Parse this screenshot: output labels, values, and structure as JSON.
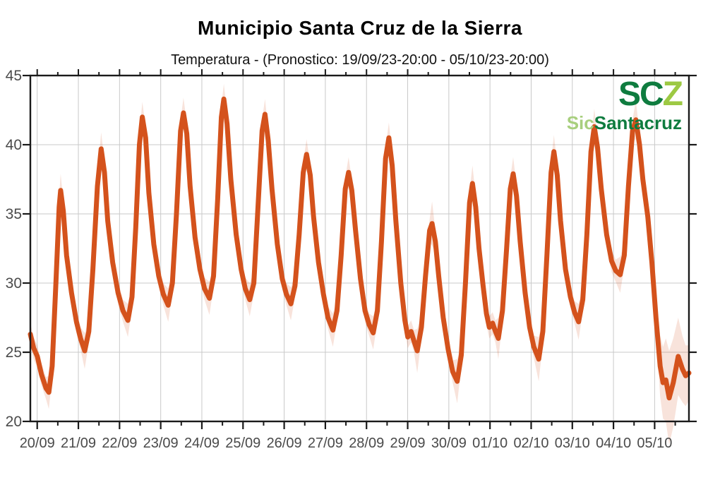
{
  "title": "Municipio Santa Cruz de la Sierra",
  "subtitle": "Temperatura - (Pronostico: 19/09/23-20:00 - 05/10/23-20:00)",
  "logo": {
    "scz_dark": "SC",
    "scz_light": "Z",
    "sub_light": "Sic",
    "sub_dark": "Santacruz"
  },
  "colors": {
    "line": "#d4521c",
    "band": "rgba(212,82,28,0.16)",
    "grid": "#c9c9c9",
    "axis": "#1a1a1a",
    "tick_label": "#4a4a4a",
    "logo_dark_green": "#0f7c3f",
    "logo_light_green": "#9dc943",
    "logo_pale_green": "#a8cf7e"
  },
  "chart_data": {
    "type": "line",
    "title": "Municipio Santa Cruz de la Sierra",
    "subtitle": "Temperatura - (Pronostico: 19/09/23-20:00 - 05/10/23-20:00)",
    "xlabel": "",
    "ylabel": "",
    "x_start": "19/09/23-20:00",
    "x_end": "05/10/23-20:00",
    "x_range_days": 16,
    "x_first_tick_offset_days": 0.1667,
    "xticklabels": [
      "20/09",
      "21/09",
      "22/09",
      "23/09",
      "24/09",
      "25/09",
      "26/09",
      "27/09",
      "28/09",
      "29/09",
      "30/09",
      "01/10",
      "02/10",
      "03/10",
      "04/10",
      "05/10"
    ],
    "ylim": [
      20,
      45
    ],
    "yticks": [
      20,
      25,
      30,
      35,
      40,
      45
    ],
    "grid": true,
    "legend": "none",
    "band_default_halfwidth": 0.8,
    "series": [
      {
        "name": "Temperatura pronosticada (C)",
        "points": [
          [
            0.0,
            26.3
          ],
          [
            0.08,
            25.3
          ],
          [
            0.17,
            24.7
          ],
          [
            0.27,
            23.4
          ],
          [
            0.38,
            22.4
          ],
          [
            0.45,
            22.1,
            1.2
          ],
          [
            0.53,
            24.0
          ],
          [
            0.62,
            30.0
          ],
          [
            0.7,
            35.5
          ],
          [
            0.735,
            36.7,
            1.2
          ],
          [
            0.8,
            35.2
          ],
          [
            0.88,
            32.0
          ],
          [
            1.0,
            29.3
          ],
          [
            1.12,
            27.2
          ],
          [
            1.22,
            26.0
          ],
          [
            1.32,
            25.1,
            1.3
          ],
          [
            1.42,
            26.5
          ],
          [
            1.52,
            31.0
          ],
          [
            1.63,
            37.0
          ],
          [
            1.72,
            39.7,
            1.2
          ],
          [
            1.8,
            38.0
          ],
          [
            1.88,
            34.5
          ],
          [
            2.0,
            31.5
          ],
          [
            2.13,
            29.3
          ],
          [
            2.25,
            28.0
          ],
          [
            2.37,
            27.3,
            1.2
          ],
          [
            2.47,
            29.0
          ],
          [
            2.56,
            34.0
          ],
          [
            2.65,
            40.0
          ],
          [
            2.72,
            42.0,
            1.1
          ],
          [
            2.8,
            40.5
          ],
          [
            2.88,
            36.5
          ],
          [
            3.0,
            32.8
          ],
          [
            3.12,
            30.5
          ],
          [
            3.23,
            29.2
          ],
          [
            3.35,
            28.4,
            1.2
          ],
          [
            3.45,
            30.0
          ],
          [
            3.55,
            35.0
          ],
          [
            3.65,
            41.0
          ],
          [
            3.72,
            42.3,
            1.1
          ],
          [
            3.8,
            40.8
          ],
          [
            3.88,
            37.0
          ],
          [
            4.0,
            33.3
          ],
          [
            4.12,
            31.0
          ],
          [
            4.23,
            29.6
          ],
          [
            4.35,
            28.9,
            1.2
          ],
          [
            4.45,
            30.5
          ],
          [
            4.55,
            36.0
          ],
          [
            4.64,
            42.0
          ],
          [
            4.7,
            43.3,
            1.1
          ],
          [
            4.78,
            41.5
          ],
          [
            4.87,
            37.5
          ],
          [
            5.0,
            33.5
          ],
          [
            5.12,
            31.0
          ],
          [
            5.22,
            29.6
          ],
          [
            5.33,
            28.8,
            1.2
          ],
          [
            5.43,
            30.0
          ],
          [
            5.53,
            35.5
          ],
          [
            5.63,
            41.0
          ],
          [
            5.7,
            42.2,
            1.1
          ],
          [
            5.78,
            40.3
          ],
          [
            5.87,
            36.8
          ],
          [
            6.0,
            32.8
          ],
          [
            6.12,
            30.3
          ],
          [
            6.22,
            29.2
          ],
          [
            6.33,
            28.5,
            1.2
          ],
          [
            6.43,
            29.8
          ],
          [
            6.53,
            33.5
          ],
          [
            6.63,
            38.0
          ],
          [
            6.71,
            39.3,
            1.1
          ],
          [
            6.8,
            37.8
          ],
          [
            6.88,
            34.8
          ],
          [
            7.0,
            31.5
          ],
          [
            7.12,
            29.2
          ],
          [
            7.23,
            27.5
          ],
          [
            7.35,
            26.6,
            1.2
          ],
          [
            7.45,
            28.0
          ],
          [
            7.55,
            32.0
          ],
          [
            7.65,
            36.8
          ],
          [
            7.73,
            38.0,
            1.1
          ],
          [
            7.81,
            36.7
          ],
          [
            7.9,
            33.8
          ],
          [
            8.02,
            30.3
          ],
          [
            8.13,
            28.0
          ],
          [
            8.23,
            27.0
          ],
          [
            8.33,
            26.4,
            1.2
          ],
          [
            8.43,
            28.0
          ],
          [
            8.53,
            33.0
          ],
          [
            8.63,
            39.0
          ],
          [
            8.71,
            40.5,
            1.1
          ],
          [
            8.79,
            38.5
          ],
          [
            8.88,
            34.5
          ],
          [
            9.0,
            30.0
          ],
          [
            9.1,
            27.3
          ],
          [
            9.17,
            26.1
          ],
          [
            9.25,
            26.5
          ],
          [
            9.32,
            25.8
          ],
          [
            9.4,
            25.1,
            1.6
          ],
          [
            9.5,
            26.8
          ],
          [
            9.6,
            30.5
          ],
          [
            9.7,
            33.8
          ],
          [
            9.76,
            34.3,
            1.6
          ],
          [
            9.84,
            33.0
          ],
          [
            9.92,
            30.5
          ],
          [
            10.03,
            27.5
          ],
          [
            10.15,
            25.2
          ],
          [
            10.26,
            23.6
          ],
          [
            10.37,
            22.9,
            1.6
          ],
          [
            10.47,
            24.8
          ],
          [
            10.57,
            30.0
          ],
          [
            10.67,
            35.8
          ],
          [
            10.74,
            37.2,
            1.3
          ],
          [
            10.82,
            35.5
          ],
          [
            10.9,
            32.5
          ],
          [
            11.0,
            29.8
          ],
          [
            11.08,
            27.8
          ],
          [
            11.15,
            26.8
          ],
          [
            11.23,
            27.1
          ],
          [
            11.3,
            26.5
          ],
          [
            11.37,
            26.0,
            1.5
          ],
          [
            11.47,
            28.0
          ],
          [
            11.57,
            32.5
          ],
          [
            11.66,
            36.8
          ],
          [
            11.73,
            37.9,
            1.2
          ],
          [
            11.81,
            36.3
          ],
          [
            11.9,
            33.0
          ],
          [
            12.02,
            29.3
          ],
          [
            12.13,
            26.8
          ],
          [
            12.23,
            25.4
          ],
          [
            12.35,
            24.5,
            1.6
          ],
          [
            12.45,
            26.5
          ],
          [
            12.55,
            32.0
          ],
          [
            12.65,
            38.0
          ],
          [
            12.72,
            39.5,
            1.2
          ],
          [
            12.8,
            37.8
          ],
          [
            12.88,
            34.5
          ],
          [
            13.0,
            31.0
          ],
          [
            13.12,
            29.0
          ],
          [
            13.22,
            27.9
          ],
          [
            13.32,
            27.2,
            1.3
          ],
          [
            13.42,
            28.8
          ],
          [
            13.52,
            33.5
          ],
          [
            13.62,
            39.5
          ],
          [
            13.7,
            41.3,
            1.3
          ],
          [
            13.78,
            39.8
          ],
          [
            13.87,
            36.8
          ],
          [
            14.0,
            33.5
          ],
          [
            14.12,
            31.6
          ],
          [
            14.22,
            30.9
          ],
          [
            14.33,
            30.6,
            1.3
          ],
          [
            14.43,
            32.0
          ],
          [
            14.53,
            37.0
          ],
          [
            14.63,
            41.0
          ],
          [
            14.71,
            41.8,
            1.4
          ],
          [
            14.8,
            40.0
          ],
          [
            14.88,
            37.5
          ],
          [
            15.0,
            34.8
          ],
          [
            15.1,
            31.5
          ],
          [
            15.2,
            27.5
          ],
          [
            15.3,
            24.0,
            2.2
          ],
          [
            15.37,
            22.8,
            2.6
          ],
          [
            15.44,
            23.0,
            3.0
          ],
          [
            15.52,
            21.7,
            3.4
          ],
          [
            15.62,
            22.8,
            3.2
          ],
          [
            15.74,
            24.7,
            2.8
          ],
          [
            15.84,
            23.8,
            2.4
          ],
          [
            15.92,
            23.3,
            2.2
          ],
          [
            16.0,
            23.5,
            2.0
          ]
        ]
      }
    ]
  }
}
